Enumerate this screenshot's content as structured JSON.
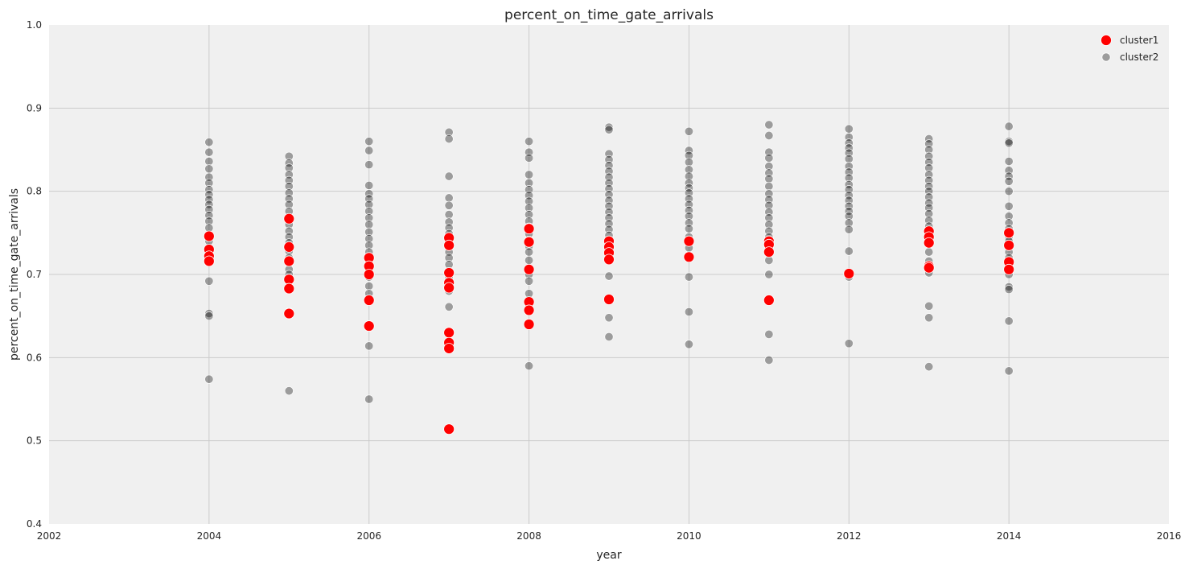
{
  "chart_data": {
    "type": "scatter",
    "title": "percent_on_time_gate_arrivals",
    "xlabel": "year",
    "ylabel": "percent_on_time_gate_arrivals",
    "xlim": [
      2002,
      2016
    ],
    "ylim": [
      0.4,
      1.0
    ],
    "xticks": [
      2002,
      2004,
      2006,
      2008,
      2010,
      2012,
      2014,
      2016
    ],
    "yticks": [
      0.4,
      0.5,
      0.6,
      0.7,
      0.8,
      0.9,
      1.0
    ],
    "xtick_labels": [
      "2002",
      "2004",
      "2006",
      "2008",
      "2010",
      "2012",
      "2014",
      "2016"
    ],
    "ytick_labels": [
      "0.4",
      "0.5",
      "0.6",
      "0.7",
      "0.8",
      "0.9",
      "1.0"
    ],
    "grid": true,
    "background": "#f0f0f0",
    "legend_position": "top-right",
    "series": [
      {
        "name": "cluster1",
        "color": "#ff0000",
        "points": [
          [
            2004,
            0.746
          ],
          [
            2004,
            0.73
          ],
          [
            2004,
            0.722
          ],
          [
            2004,
            0.716
          ],
          [
            2005,
            0.767
          ],
          [
            2005,
            0.733
          ],
          [
            2005,
            0.716
          ],
          [
            2005,
            0.694
          ],
          [
            2005,
            0.683
          ],
          [
            2005,
            0.653
          ],
          [
            2006,
            0.72
          ],
          [
            2006,
            0.71
          ],
          [
            2006,
            0.7
          ],
          [
            2006,
            0.669
          ],
          [
            2006,
            0.638
          ],
          [
            2007,
            0.744
          ],
          [
            2007,
            0.735
          ],
          [
            2007,
            0.702
          ],
          [
            2007,
            0.69
          ],
          [
            2007,
            0.684
          ],
          [
            2007,
            0.63
          ],
          [
            2007,
            0.618
          ],
          [
            2007,
            0.611
          ],
          [
            2007,
            0.514
          ],
          [
            2008,
            0.755
          ],
          [
            2008,
            0.739
          ],
          [
            2008,
            0.706
          ],
          [
            2008,
            0.667
          ],
          [
            2008,
            0.657
          ],
          [
            2008,
            0.64
          ],
          [
            2009,
            0.74
          ],
          [
            2009,
            0.733
          ],
          [
            2009,
            0.726
          ],
          [
            2009,
            0.718
          ],
          [
            2009,
            0.67
          ],
          [
            2010,
            0.74
          ],
          [
            2010,
            0.721
          ],
          [
            2011,
            0.74
          ],
          [
            2011,
            0.736
          ],
          [
            2011,
            0.727
          ],
          [
            2011,
            0.669
          ],
          [
            2012,
            0.701
          ],
          [
            2013,
            0.752
          ],
          [
            2013,
            0.745
          ],
          [
            2013,
            0.738
          ],
          [
            2013,
            0.71
          ],
          [
            2013,
            0.708
          ],
          [
            2014,
            0.75
          ],
          [
            2014,
            0.735
          ],
          [
            2014,
            0.715
          ],
          [
            2014,
            0.706
          ]
        ]
      },
      {
        "name": "cluster2",
        "color": "#000000",
        "points": [
          [
            2004,
            0.859
          ],
          [
            2004,
            0.847
          ],
          [
            2004,
            0.836
          ],
          [
            2004,
            0.827
          ],
          [
            2004,
            0.817
          ],
          [
            2004,
            0.81
          ],
          [
            2004,
            0.802
          ],
          [
            2004,
            0.796
          ],
          [
            2004,
            0.79
          ],
          [
            2004,
            0.784
          ],
          [
            2004,
            0.778
          ],
          [
            2004,
            0.771
          ],
          [
            2004,
            0.764
          ],
          [
            2004,
            0.756
          ],
          [
            2004,
            0.74
          ],
          [
            2004,
            0.722
          ],
          [
            2004,
            0.692
          ],
          [
            2004,
            0.653
          ],
          [
            2004,
            0.65
          ],
          [
            2004,
            0.574
          ],
          [
            2005,
            0.842
          ],
          [
            2005,
            0.834
          ],
          [
            2005,
            0.828
          ],
          [
            2005,
            0.82
          ],
          [
            2005,
            0.813
          ],
          [
            2005,
            0.806
          ],
          [
            2005,
            0.798
          ],
          [
            2005,
            0.791
          ],
          [
            2005,
            0.784
          ],
          [
            2005,
            0.776
          ],
          [
            2005,
            0.768
          ],
          [
            2005,
            0.76
          ],
          [
            2005,
            0.752
          ],
          [
            2005,
            0.745
          ],
          [
            2005,
            0.738
          ],
          [
            2005,
            0.728
          ],
          [
            2005,
            0.72
          ],
          [
            2005,
            0.706
          ],
          [
            2005,
            0.7
          ],
          [
            2005,
            0.655
          ],
          [
            2005,
            0.56
          ],
          [
            2006,
            0.86
          ],
          [
            2006,
            0.849
          ],
          [
            2006,
            0.832
          ],
          [
            2006,
            0.807
          ],
          [
            2006,
            0.797
          ],
          [
            2006,
            0.791
          ],
          [
            2006,
            0.784
          ],
          [
            2006,
            0.776
          ],
          [
            2006,
            0.768
          ],
          [
            2006,
            0.76
          ],
          [
            2006,
            0.751
          ],
          [
            2006,
            0.743
          ],
          [
            2006,
            0.735
          ],
          [
            2006,
            0.727
          ],
          [
            2006,
            0.716
          ],
          [
            2006,
            0.705
          ],
          [
            2006,
            0.697
          ],
          [
            2006,
            0.686
          ],
          [
            2006,
            0.677
          ],
          [
            2006,
            0.614
          ],
          [
            2006,
            0.55
          ],
          [
            2007,
            0.871
          ],
          [
            2007,
            0.863
          ],
          [
            2007,
            0.818
          ],
          [
            2007,
            0.792
          ],
          [
            2007,
            0.783
          ],
          [
            2007,
            0.772
          ],
          [
            2007,
            0.763
          ],
          [
            2007,
            0.756
          ],
          [
            2007,
            0.749
          ],
          [
            2007,
            0.74
          ],
          [
            2007,
            0.727
          ],
          [
            2007,
            0.72
          ],
          [
            2007,
            0.712
          ],
          [
            2007,
            0.697
          ],
          [
            2007,
            0.68
          ],
          [
            2007,
            0.661
          ],
          [
            2008,
            0.86
          ],
          [
            2008,
            0.847
          ],
          [
            2008,
            0.84
          ],
          [
            2008,
            0.82
          ],
          [
            2008,
            0.81
          ],
          [
            2008,
            0.802
          ],
          [
            2008,
            0.795
          ],
          [
            2008,
            0.788
          ],
          [
            2008,
            0.78
          ],
          [
            2008,
            0.772
          ],
          [
            2008,
            0.764
          ],
          [
            2008,
            0.757
          ],
          [
            2008,
            0.749
          ],
          [
            2008,
            0.741
          ],
          [
            2008,
            0.734
          ],
          [
            2008,
            0.727
          ],
          [
            2008,
            0.717
          ],
          [
            2008,
            0.7
          ],
          [
            2008,
            0.692
          ],
          [
            2008,
            0.677
          ],
          [
            2008,
            0.59
          ],
          [
            2009,
            0.877
          ],
          [
            2009,
            0.874
          ],
          [
            2009,
            0.845
          ],
          [
            2009,
            0.838
          ],
          [
            2009,
            0.831
          ],
          [
            2009,
            0.824
          ],
          [
            2009,
            0.817
          ],
          [
            2009,
            0.81
          ],
          [
            2009,
            0.803
          ],
          [
            2009,
            0.796
          ],
          [
            2009,
            0.789
          ],
          [
            2009,
            0.782
          ],
          [
            2009,
            0.775
          ],
          [
            2009,
            0.768
          ],
          [
            2009,
            0.761
          ],
          [
            2009,
            0.754
          ],
          [
            2009,
            0.747
          ],
          [
            2009,
            0.698
          ],
          [
            2009,
            0.648
          ],
          [
            2009,
            0.625
          ],
          [
            2010,
            0.872
          ],
          [
            2010,
            0.849
          ],
          [
            2010,
            0.843
          ],
          [
            2010,
            0.835
          ],
          [
            2010,
            0.826
          ],
          [
            2010,
            0.818
          ],
          [
            2010,
            0.81
          ],
          [
            2010,
            0.804
          ],
          [
            2010,
            0.798
          ],
          [
            2010,
            0.791
          ],
          [
            2010,
            0.784
          ],
          [
            2010,
            0.777
          ],
          [
            2010,
            0.77
          ],
          [
            2010,
            0.762
          ],
          [
            2010,
            0.755
          ],
          [
            2010,
            0.745
          ],
          [
            2010,
            0.732
          ],
          [
            2010,
            0.697
          ],
          [
            2010,
            0.655
          ],
          [
            2010,
            0.616
          ],
          [
            2011,
            0.88
          ],
          [
            2011,
            0.867
          ],
          [
            2011,
            0.847
          ],
          [
            2011,
            0.84
          ],
          [
            2011,
            0.83
          ],
          [
            2011,
            0.822
          ],
          [
            2011,
            0.815
          ],
          [
            2011,
            0.806
          ],
          [
            2011,
            0.797
          ],
          [
            2011,
            0.79
          ],
          [
            2011,
            0.783
          ],
          [
            2011,
            0.775
          ],
          [
            2011,
            0.768
          ],
          [
            2011,
            0.76
          ],
          [
            2011,
            0.752
          ],
          [
            2011,
            0.745
          ],
          [
            2011,
            0.717
          ],
          [
            2011,
            0.7
          ],
          [
            2011,
            0.628
          ],
          [
            2011,
            0.597
          ],
          [
            2012,
            0.875
          ],
          [
            2012,
            0.865
          ],
          [
            2012,
            0.858
          ],
          [
            2012,
            0.852
          ],
          [
            2012,
            0.846
          ],
          [
            2012,
            0.839
          ],
          [
            2012,
            0.83
          ],
          [
            2012,
            0.823
          ],
          [
            2012,
            0.816
          ],
          [
            2012,
            0.808
          ],
          [
            2012,
            0.802
          ],
          [
            2012,
            0.795
          ],
          [
            2012,
            0.789
          ],
          [
            2012,
            0.782
          ],
          [
            2012,
            0.776
          ],
          [
            2012,
            0.77
          ],
          [
            2012,
            0.762
          ],
          [
            2012,
            0.754
          ],
          [
            2012,
            0.728
          ],
          [
            2012,
            0.697
          ],
          [
            2012,
            0.617
          ],
          [
            2013,
            0.863
          ],
          [
            2013,
            0.857
          ],
          [
            2013,
            0.85
          ],
          [
            2013,
            0.842
          ],
          [
            2013,
            0.835
          ],
          [
            2013,
            0.828
          ],
          [
            2013,
            0.82
          ],
          [
            2013,
            0.813
          ],
          [
            2013,
            0.806
          ],
          [
            2013,
            0.8
          ],
          [
            2013,
            0.793
          ],
          [
            2013,
            0.786
          ],
          [
            2013,
            0.78
          ],
          [
            2013,
            0.773
          ],
          [
            2013,
            0.765
          ],
          [
            2013,
            0.758
          ],
          [
            2013,
            0.727
          ],
          [
            2013,
            0.716
          ],
          [
            2013,
            0.702
          ],
          [
            2013,
            0.662
          ],
          [
            2013,
            0.648
          ],
          [
            2013,
            0.589
          ],
          [
            2014,
            0.878
          ],
          [
            2014,
            0.86
          ],
          [
            2014,
            0.858
          ],
          [
            2014,
            0.836
          ],
          [
            2014,
            0.825
          ],
          [
            2014,
            0.818
          ],
          [
            2014,
            0.812
          ],
          [
            2014,
            0.8
          ],
          [
            2014,
            0.782
          ],
          [
            2014,
            0.77
          ],
          [
            2014,
            0.762
          ],
          [
            2014,
            0.755
          ],
          [
            2014,
            0.745
          ],
          [
            2014,
            0.74
          ],
          [
            2014,
            0.727
          ],
          [
            2014,
            0.72
          ],
          [
            2014,
            0.7
          ],
          [
            2014,
            0.685
          ],
          [
            2014,
            0.682
          ],
          [
            2014,
            0.644
          ],
          [
            2014,
            0.584
          ]
        ]
      }
    ]
  }
}
